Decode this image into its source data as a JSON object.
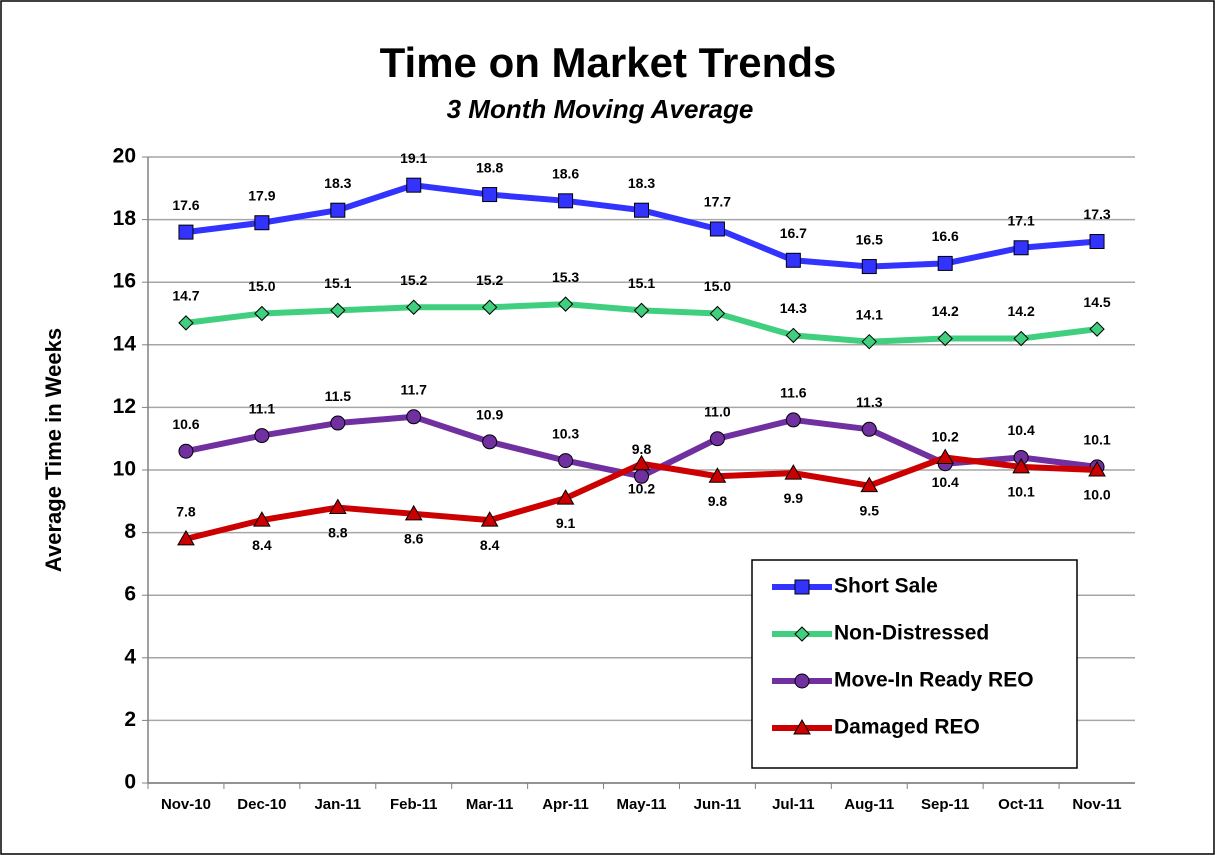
{
  "chart_data": {
    "type": "line",
    "title": "Time on Market Trends",
    "subtitle": "3 Month Moving Average",
    "y_label": "Average Time in Weeks",
    "categories": [
      "Nov-10",
      "Dec-10",
      "Jan-11",
      "Feb-11",
      "Mar-11",
      "Apr-11",
      "May-11",
      "Jun-11",
      "Jul-11",
      "Aug-11",
      "Sep-11",
      "Oct-11",
      "Nov-11"
    ],
    "ylim": [
      0,
      20
    ],
    "yticks": [
      0,
      2,
      4,
      6,
      8,
      10,
      12,
      14,
      16,
      18,
      20
    ],
    "grid": true,
    "legend": "lower right",
    "series": [
      {
        "name": "Short Sale",
        "color": "#3333ff",
        "marker": "square",
        "values": [
          17.6,
          17.9,
          18.3,
          19.1,
          18.8,
          18.6,
          18.3,
          17.7,
          16.7,
          16.5,
          16.6,
          17.1,
          17.3
        ],
        "value_labels": [
          "17.6",
          "17.9",
          "18.3",
          "19.1",
          "18.8",
          "18.6",
          "18.3",
          "17.7",
          "16.7",
          "16.5",
          "16.6",
          "17.1",
          "17.3"
        ]
      },
      {
        "name": "Non-Distressed",
        "color": "#3fcf7f",
        "marker": "diamond",
        "values": [
          14.7,
          15.0,
          15.1,
          15.2,
          15.2,
          15.3,
          15.1,
          15.0,
          14.3,
          14.1,
          14.2,
          14.2,
          14.5
        ],
        "value_labels": [
          "14.7",
          "15.0",
          "15.1",
          "15.2",
          "15.2",
          "15.3",
          "15.1",
          "15.0",
          "14.3",
          "14.1",
          "14.2",
          "14.2",
          "14.5"
        ]
      },
      {
        "name": "Move-In Ready REO",
        "color": "#7030a0",
        "marker": "circle",
        "values": [
          10.6,
          11.1,
          11.5,
          11.7,
          10.9,
          10.3,
          9.8,
          11.0,
          11.6,
          11.3,
          10.2,
          10.4,
          10.1
        ],
        "value_labels": [
          "10.6",
          "11.1",
          "11.5",
          "11.7",
          "10.9",
          "10.3",
          "9.8",
          "11.0",
          "11.6",
          "11.3",
          "10.2",
          "10.4",
          "10.1"
        ]
      },
      {
        "name": "Damaged REO",
        "color": "#cc0000",
        "marker": "triangle",
        "values": [
          7.8,
          8.4,
          8.8,
          8.6,
          8.4,
          9.1,
          10.2,
          9.8,
          9.9,
          9.5,
          10.4,
          10.1,
          10.0
        ],
        "value_labels": [
          "7.8",
          "8.4",
          "8.8",
          "8.6",
          "8.4",
          "9.1",
          "10.2",
          "9.8",
          "9.9",
          "9.5",
          "10.4",
          "10.1",
          "10.0"
        ]
      }
    ]
  }
}
